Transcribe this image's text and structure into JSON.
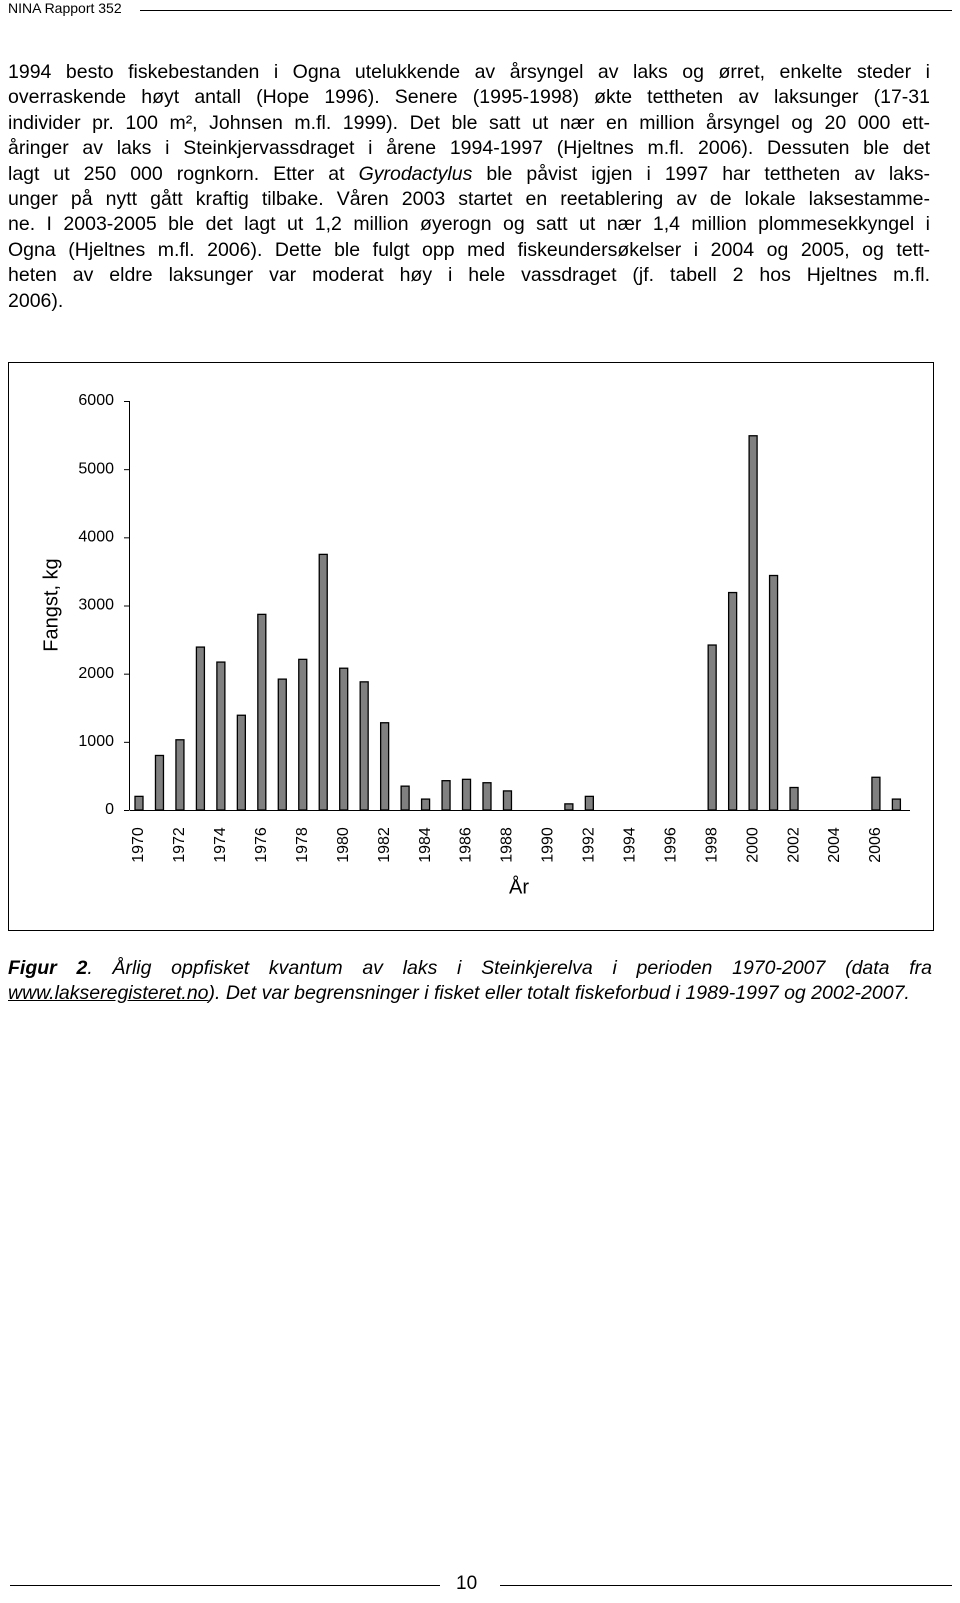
{
  "header": {
    "title": "NINA Rapport 352"
  },
  "body": {
    "lines": [
      "1994 besto fiskebestanden i Ogna utelukkende av årsyngel av laks og ørret, enkelte steder i",
      "overraskende høyt antall (Hope 1996). Senere (1995-1998) økte tettheten av laksunger (17-31",
      "individer pr. 100 m², Johnsen m.fl. 1999). Det ble satt ut nær en million årsyngel og 20 000 ett-",
      "åringer av laks i Steinkjervassdraget i årene 1994-1997 (Hjeltnes m.fl. 2006). Dessuten ble det",
      "lagt ut 250 000 rognkorn. Etter at",
      "unger på nytt gått kraftig tilbake. Våren 2003 startet en reetablering av de lokale laksestamme-",
      "ne. I 2003-2005 ble det lagt ut 1,2 million øyerogn og satt ut nær 1,4 million plommesekkyngel i",
      "Ogna (Hjeltnes m.fl. 2006). Dette ble fulgt opp med fiskeundersøkelser i 2004 og 2005, og tett-",
      "heten av eldre laksunger var moderat høy i hele vassdraget (jf. tabell 2 hos Hjeltnes m.fl.",
      "2006)."
    ],
    "emphasis": "Gyrodactylus",
    "line_5_rest": "ble påvist igjen i 1997 har tettheten av laks-"
  },
  "chart_data": {
    "type": "bar",
    "y_label": "Fangst, kg",
    "x_label": "År",
    "categories": [
      "1970",
      null,
      "1972",
      null,
      "1974",
      null,
      "1976",
      null,
      "1978",
      null,
      "1980",
      null,
      "1982",
      null,
      "1984",
      null,
      "1986",
      null,
      "1988",
      null,
      "1990",
      null,
      "1992",
      null,
      "1994",
      null,
      "1996",
      null,
      "1998",
      null,
      "2000",
      null,
      "2002",
      null,
      "2004",
      null,
      "2006",
      null
    ],
    "values": [
      200,
      800,
      1030,
      2390,
      2170,
      1390,
      2870,
      1920,
      2210,
      3750,
      2080,
      1880,
      1280,
      350,
      160,
      430,
      450,
      400,
      280,
      null,
      null,
      90,
      200,
      null,
      null,
      null,
      null,
      null,
      2420,
      3190,
      5490,
      3440,
      330,
      null,
      null,
      null,
      480,
      160
    ],
    "color": "#808080",
    "ylim": [
      0,
      6000
    ],
    "yticks": [
      0,
      1000,
      2000,
      3000,
      4000,
      5000,
      6000
    ],
    "grid": false
  },
  "caption": {
    "label": "Figur 2",
    "text": ". Årlig oppfisket kvantum av laks i Steinkjerelva i perioden 1970-2007 (data fra ",
    "link": "www.lakseregisteret.no",
    "text_after": "). Det var begrensninger i fisket eller totalt fiskeforbud i 1989-1997 og 2002-2007."
  },
  "footer": {
    "page": "10"
  }
}
